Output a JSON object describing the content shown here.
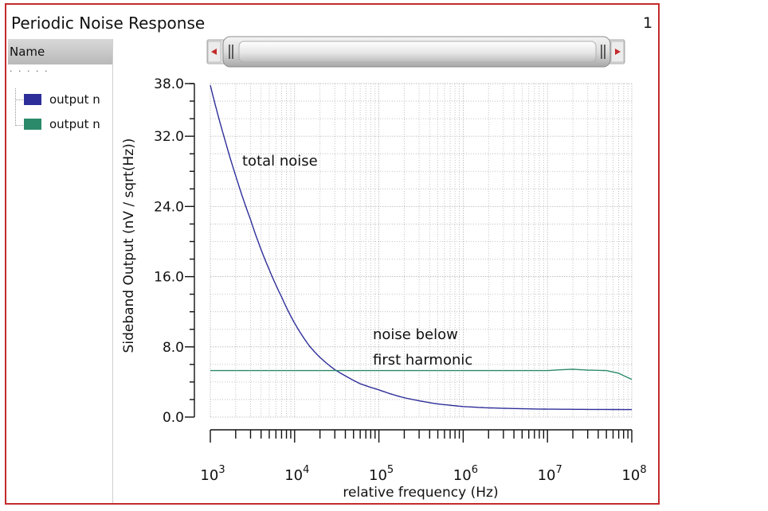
{
  "window": {
    "title": "Periodic Noise Response",
    "page_number": "1"
  },
  "sidebar": {
    "header": "Name",
    "items": [
      {
        "label": "output n",
        "color": "#2e2e9a"
      },
      {
        "label": "output n",
        "color": "#2a8a6a"
      }
    ]
  },
  "colors": {
    "frame": "#c42b2b",
    "grid": "#b5b5b5"
  },
  "chart_data": {
    "type": "line",
    "x_scale": "log",
    "xlabel": "relative frequency (Hz)",
    "ylabel": "Sideband Output (nV / sqrt(Hz))",
    "xlim": [
      1000,
      100000000
    ],
    "ylim": [
      0,
      38
    ],
    "y_ticks": [
      "0.0",
      "8.0",
      "16.0",
      "24.0",
      "32.0",
      "38.0"
    ],
    "x_ticks": [
      {
        "base": "10",
        "exp": "3"
      },
      {
        "base": "10",
        "exp": "4"
      },
      {
        "base": "10",
        "exp": "5"
      },
      {
        "base": "10",
        "exp": "6"
      },
      {
        "base": "10",
        "exp": "7"
      },
      {
        "base": "10",
        "exp": "8"
      }
    ],
    "grid": true,
    "annotations": [
      "total noise",
      "noise below",
      "first harmonic"
    ],
    "series": [
      {
        "color": "#2e2e9a",
        "x": [
          1000,
          1500,
          2000,
          3000,
          5000,
          7000,
          10000,
          15000,
          20000,
          30000,
          40000,
          60000,
          100000,
          200000,
          500000,
          1000000,
          2000000,
          5000000,
          10000000,
          100000000
        ],
        "y": [
          37.8,
          31.5,
          27.5,
          22.5,
          16.8,
          13.7,
          10.7,
          8.1,
          6.8,
          5.4,
          4.7,
          3.8,
          3.1,
          2.2,
          1.5,
          1.2,
          1.05,
          0.95,
          0.9,
          0.85
        ]
      },
      {
        "color": "#2a8a6a",
        "x": [
          1000,
          100000,
          1000000,
          10000000,
          15000000,
          20000000,
          30000000,
          50000000,
          70000000,
          100000000
        ],
        "y": [
          5.3,
          5.3,
          5.3,
          5.3,
          5.4,
          5.45,
          5.35,
          5.3,
          5.0,
          4.3
        ]
      }
    ]
  }
}
